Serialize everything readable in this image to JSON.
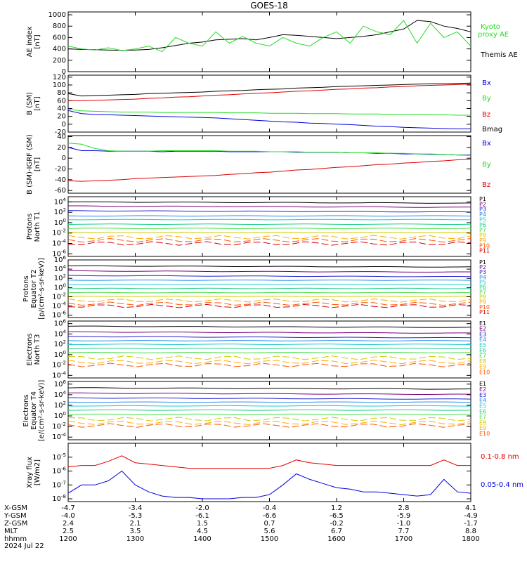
{
  "title": "GOES-18",
  "colors": {
    "black": "#000000",
    "red": "#dd0000",
    "green": "#22dd22",
    "blue": "#0000dd",
    "p_palette": [
      "#000000",
      "#7a007a",
      "#2222cc",
      "#2288ee",
      "#22cccc",
      "#22cc88",
      "#44dd44",
      "#cccc00",
      "#ffaa00",
      "#ff5500",
      "#dd0000"
    ],
    "e_palette": [
      "#000000",
      "#7a007a",
      "#2222cc",
      "#2288ee",
      "#22cccc",
      "#22cc88",
      "#44dd44",
      "#cccc00",
      "#ffaa00",
      "#ff5500",
      "#dd0000"
    ]
  },
  "bottom_axis": {
    "row_labels": [
      "X-GSM",
      "Y-GSM",
      "Z-GSM",
      "MLT",
      "hhmm",
      "2024 Jul 22"
    ],
    "columns": [
      {
        "x": "-4.7",
        "y": "-4.0",
        "z": "2.4",
        "mlt": "2.5",
        "hhmm": "1200"
      },
      {
        "x": "-3.4",
        "y": "-5.3",
        "z": "2.1",
        "mlt": "3.5",
        "hhmm": "1300"
      },
      {
        "x": "-2.0",
        "y": "-6.1",
        "z": "1.5",
        "mlt": "4.5",
        "hhmm": "1400"
      },
      {
        "x": "-0.4",
        "y": "-6.6",
        "z": "0.7",
        "mlt": "5.6",
        "hhmm": "1500"
      },
      {
        "x": "1.2",
        "y": "-6.5",
        "z": "-0.2",
        "mlt": "6.7",
        "hhmm": "1600"
      },
      {
        "x": "2.8",
        "y": "-5.9",
        "z": "-1.0",
        "mlt": "7.7",
        "hhmm": "1700"
      },
      {
        "x": "4.1",
        "y": "-4.9",
        "z": "-1.7",
        "mlt": "8.8",
        "hhmm": "1800"
      }
    ]
  },
  "chart_data": [
    {
      "type": "line",
      "ylabel": [
        "AE index",
        "[nT]"
      ],
      "yticks": [
        "1000",
        "800",
        "600",
        "400",
        "200",
        "0"
      ],
      "ylim": [
        0,
        1050
      ],
      "legend": [
        "Kyoto",
        "proxy AE",
        "Themis AE"
      ],
      "series": [
        {
          "name": "Themis AE",
          "color": "black",
          "values": [
            400,
            390,
            385,
            380,
            375,
            380,
            390,
            420,
            460,
            500,
            520,
            560,
            570,
            580,
            560,
            600,
            650,
            640,
            620,
            600,
            580,
            600,
            620,
            650,
            700,
            750,
            900,
            880,
            800,
            760,
            700
          ]
        },
        {
          "name": "Kyoto proxy AE",
          "color": "green",
          "values": [
            450,
            400,
            380,
            420,
            370,
            400,
            450,
            350,
            600,
            500,
            450,
            700,
            500,
            620,
            500,
            450,
            600,
            500,
            450,
            600,
            700,
            500,
            800,
            700,
            650,
            900,
            500,
            850,
            600,
            700,
            450
          ]
        }
      ]
    },
    {
      "type": "line",
      "ylabel": [
        "B (SM)",
        "[nT]"
      ],
      "yticks": [
        "120",
        "100",
        "80",
        "60",
        "40",
        "20",
        "0",
        "-20"
      ],
      "ylim": [
        -20,
        125
      ],
      "legend": [
        "Bx",
        "By",
        "Bz",
        "Bmag"
      ],
      "series": [
        {
          "name": "Bx",
          "color": "blue",
          "values": [
            35,
            27,
            25,
            24,
            23,
            22,
            21,
            20,
            19,
            18,
            17,
            16,
            14,
            12,
            10,
            8,
            6,
            5,
            3,
            2,
            0,
            -1,
            -3,
            -5,
            -6,
            -8,
            -9,
            -10,
            -11,
            -12,
            -12
          ]
        },
        {
          "name": "By",
          "color": "green",
          "values": [
            38,
            34,
            33,
            32,
            31,
            31,
            31,
            30,
            30,
            30,
            30,
            30,
            29,
            29,
            29,
            28,
            28,
            28,
            27,
            27,
            27,
            26,
            26,
            26,
            25,
            25,
            25,
            24,
            24,
            23,
            23
          ]
        },
        {
          "name": "Bz",
          "color": "red",
          "values": [
            60,
            60,
            61,
            62,
            63,
            64,
            66,
            67,
            69,
            70,
            72,
            74,
            75,
            77,
            79,
            80,
            82,
            84,
            85,
            87,
            89,
            90,
            92,
            93,
            95,
            96,
            98,
            99,
            100,
            101,
            102
          ]
        },
        {
          "name": "Bmag",
          "color": "black",
          "values": [
            78,
            72,
            73,
            74,
            75,
            76,
            78,
            79,
            80,
            81,
            82,
            84,
            85,
            86,
            88,
            89,
            90,
            92,
            93,
            94,
            96,
            97,
            98,
            99,
            100,
            101,
            102,
            103,
            103,
            104,
            105
          ]
        }
      ]
    },
    {
      "type": "line",
      "ylabel": [
        "B (SM)-IGRF (SM)",
        "[nT]"
      ],
      "yticks": [
        "40",
        "20",
        "0",
        "-20",
        "-40",
        "-60"
      ],
      "ylim": [
        -65,
        42
      ],
      "legend": [
        "Bx",
        "By",
        "Bz"
      ],
      "series": [
        {
          "name": "Bx",
          "color": "blue",
          "values": [
            20,
            14,
            14,
            13,
            13,
            13,
            13,
            12,
            13,
            13,
            13,
            13,
            12,
            12,
            12,
            12,
            12,
            11,
            11,
            11,
            11,
            10,
            10,
            9,
            9,
            8,
            8,
            7,
            7,
            6,
            6
          ]
        },
        {
          "name": "By",
          "color": "green",
          "values": [
            28,
            26,
            18,
            14,
            13,
            13,
            13,
            14,
            14,
            14,
            14,
            14,
            13,
            13,
            13,
            12,
            12,
            12,
            11,
            11,
            11,
            10,
            10,
            10,
            9,
            9,
            8,
            8,
            7,
            6,
            5
          ]
        },
        {
          "name": "Bz",
          "color": "red",
          "values": [
            -42,
            -43,
            -42,
            -41,
            -40,
            -38,
            -37,
            -36,
            -35,
            -34,
            -33,
            -32,
            -30,
            -29,
            -27,
            -26,
            -24,
            -22,
            -21,
            -19,
            -17,
            -16,
            -14,
            -12,
            -11,
            -9,
            -8,
            -6,
            -5,
            -3,
            -2
          ]
        }
      ]
    },
    {
      "type": "line",
      "log": true,
      "ylabel": [
        "Protons",
        "North T1"
      ],
      "yticks": [
        "10^4",
        "10^2",
        "10^0",
        "10^-2",
        "10^-4",
        "10^-6"
      ],
      "ylim": [
        -6.5,
        5
      ],
      "legend": [
        "P1",
        "P2",
        "P3",
        "P4",
        "P5",
        "P6",
        "P7",
        "P8",
        "P9",
        "P10",
        "P11"
      ],
      "levels": [
        4.0,
        3.2,
        2.3,
        1.3,
        0.6,
        -0.3,
        -1.1,
        -1.9,
        -2.8,
        -3.4,
        -4.0
      ]
    },
    {
      "type": "line",
      "log": true,
      "ylabel": [
        "Protons",
        "Equator T2",
        "[p/(cm²-s-sr-keV)]"
      ],
      "yticks": [
        "10^6",
        "10^4",
        "10^2",
        "10^0",
        "10^-2",
        "10^-4",
        "10^-6"
      ],
      "ylim": [
        -6.5,
        6
      ],
      "legend": [
        "P1",
        "P2",
        "P3",
        "P4",
        "P5",
        "P6",
        "P7",
        "P8",
        "P9",
        "P10",
        "P11"
      ],
      "levels": [
        4.7,
        3.6,
        2.6,
        1.6,
        0.7,
        -0.2,
        -1.1,
        -1.9,
        -2.8,
        -3.5,
        -4.0
      ]
    },
    {
      "type": "line",
      "log": true,
      "ylabel": [
        "Electrons",
        "North T3"
      ],
      "yticks": [
        "10^6",
        "10^4",
        "10^2",
        "10^0",
        "10^-2",
        "10^-4"
      ],
      "ylim": [
        -4.5,
        6.5
      ],
      "legend": [
        "E1",
        "E2",
        "E3",
        "E4",
        "E5",
        "E6",
        "E7",
        "E8",
        "E9",
        "E10"
      ],
      "levels": [
        5.5,
        4.4,
        3.5,
        2.7,
        2.0,
        1.2,
        0.4,
        -0.6,
        -1.4,
        -2.0
      ]
    },
    {
      "type": "line",
      "log": true,
      "ylabel": [
        "Electrons",
        "Equator T4",
        "[e/(cm²-s-sr-keV)]"
      ],
      "yticks": [
        "10^6",
        "10^4",
        "10^2",
        "10^0",
        "10^-2",
        "10^-4"
      ],
      "ylim": [
        -4.5,
        6.5
      ],
      "legend": [
        "E1",
        "E2",
        "E3",
        "E4",
        "E5",
        "E6",
        "E7",
        "E8",
        "E9",
        "E10"
      ],
      "levels": [
        5.3,
        4.3,
        3.4,
        2.6,
        1.9,
        1.1,
        0.3,
        -0.6,
        -1.3,
        -1.8
      ]
    },
    {
      "type": "line",
      "log": true,
      "ylabel": [
        "Xray flux",
        "[W/m2]"
      ],
      "yticks": [
        "10^-5",
        "10^-6",
        "10^-7",
        "10^-8"
      ],
      "ylim": [
        -8.2,
        -4.0
      ],
      "legend": [
        "0.1-0.8 nm",
        "0.05-0.4 nm"
      ],
      "series": [
        {
          "name": "0.1-0.8 nm",
          "color": "red",
          "values": [
            -5.7,
            -5.6,
            -5.6,
            -5.3,
            -4.9,
            -5.4,
            -5.5,
            -5.6,
            -5.7,
            -5.8,
            -5.8,
            -5.8,
            -5.8,
            -5.8,
            -5.8,
            -5.8,
            -5.6,
            -5.2,
            -5.4,
            -5.5,
            -5.6,
            -5.6,
            -5.6,
            -5.6,
            -5.6,
            -5.6,
            -5.6,
            -5.6,
            -5.2,
            -5.6,
            -5.6
          ]
        },
        {
          "name": "0.05-0.4 nm",
          "color": "blue",
          "values": [
            -7.6,
            -7.0,
            -7.0,
            -6.7,
            -6.0,
            -7.0,
            -7.5,
            -7.8,
            -7.9,
            -7.9,
            -8.0,
            -8.0,
            -8.0,
            -7.9,
            -7.9,
            -7.7,
            -7.0,
            -6.2,
            -6.6,
            -6.9,
            -7.2,
            -7.3,
            -7.5,
            -7.5,
            -7.6,
            -7.7,
            -7.8,
            -7.7,
            -6.6,
            -7.5,
            -7.6
          ]
        }
      ]
    }
  ]
}
